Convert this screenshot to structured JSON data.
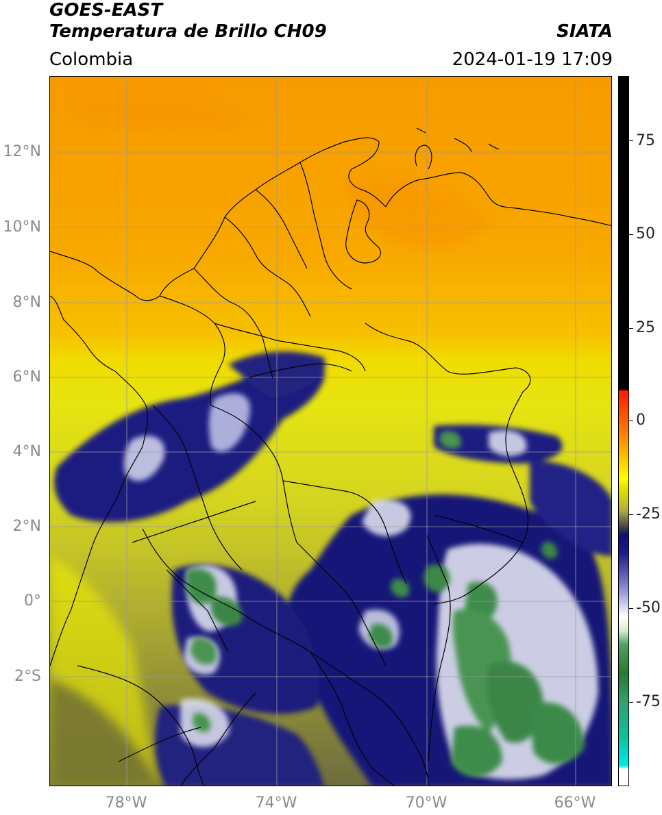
{
  "header": {
    "satellite": "GOES-EAST",
    "product": "Temperatura de Brillo CH09",
    "region": "Colombia",
    "agency": "SIATA",
    "datetime": "2024-01-19 17:09"
  },
  "map": {
    "latitude_labels": [
      "12°N",
      "10°N",
      "8°N",
      "6°N",
      "4°N",
      "2°N",
      "0°",
      "2°S"
    ],
    "longitude_labels": [
      "78°W",
      "74°W",
      "70°W",
      "66°W"
    ],
    "colors": {
      "warm_orange": "#f7a000",
      "yellow": "#f2e600",
      "olive": "#8a8a40",
      "navy": "#12127a",
      "white": "#f2f4ff",
      "green": "#3f8e4a",
      "grid": "#9a9a9a",
      "borders": "#000000"
    }
  },
  "colorbar": {
    "tick_labels": [
      "75",
      "50",
      "25",
      "0",
      "-25",
      "-50",
      "-75"
    ]
  }
}
